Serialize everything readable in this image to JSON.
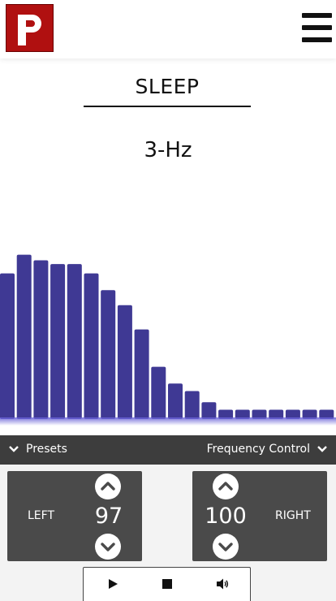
{
  "header": {
    "logo_letter": "p",
    "menu_icon": "hamburger-menu-icon"
  },
  "main": {
    "title": "SLEEP",
    "frequency": "3-Hz"
  },
  "visualizer": {
    "bar_color": "#3f3994",
    "levels": [
      0.78,
      0.88,
      0.85,
      0.83,
      0.83,
      0.78,
      0.69,
      0.61,
      0.48,
      0.28,
      0.19,
      0.15,
      0.09,
      0.05,
      0.05,
      0.05,
      0.05,
      0.05,
      0.05,
      0.05
    ]
  },
  "panel": {
    "presets_label": "Presets",
    "frequency_control_label": "Frequency Control",
    "left": {
      "label": "LEFT",
      "value": "97"
    },
    "right": {
      "label": "RIGHT",
      "value": "100"
    }
  },
  "playback": {
    "icons": [
      "play-icon",
      "stop-icon",
      "volume-icon"
    ]
  }
}
